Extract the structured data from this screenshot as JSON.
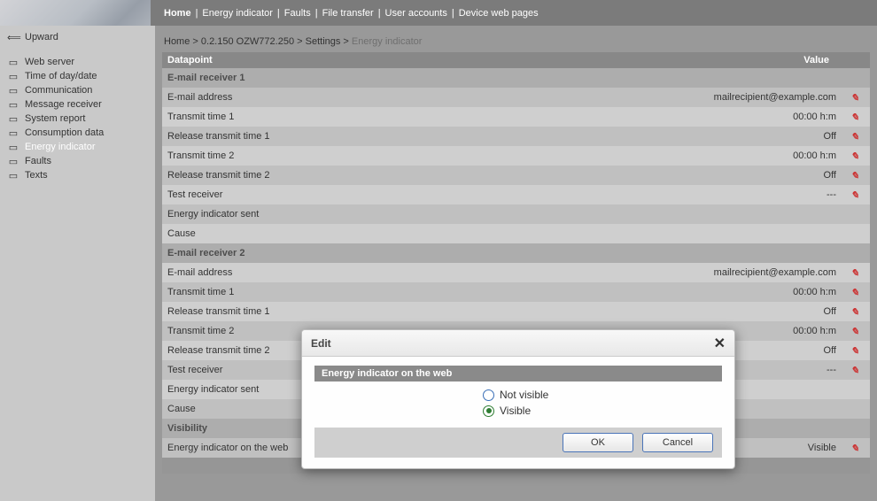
{
  "topnav": {
    "items": [
      "Home",
      "Energy indicator",
      "Faults",
      "File transfer",
      "User accounts",
      "Device web pages"
    ],
    "active_index": 0
  },
  "sidebar": {
    "upward": "Upward",
    "items": [
      "Web server",
      "Time of day/date",
      "Communication",
      "Message receiver",
      "System report",
      "Consumption data",
      "Energy indicator",
      "Faults",
      "Texts"
    ],
    "active_index": 6
  },
  "breadcrumb": {
    "parts": [
      "Home",
      "0.2.150 OZW772.250",
      "Settings"
    ],
    "last": "Energy indicator"
  },
  "table": {
    "head_datapoint": "Datapoint",
    "head_value": "Value",
    "sections": [
      {
        "title": "E-mail receiver 1",
        "rows": [
          {
            "dp": "E-mail address",
            "val": "mailrecipient@example.com",
            "edit": true
          },
          {
            "dp": "Transmit time 1",
            "val": "00:00  h:m",
            "edit": true
          },
          {
            "dp": "Release transmit time 1",
            "val": "Off",
            "edit": true
          },
          {
            "dp": "Transmit time 2",
            "val": "00:00  h:m",
            "edit": true
          },
          {
            "dp": "Release transmit time 2",
            "val": "Off",
            "edit": true
          },
          {
            "dp": "Test receiver",
            "val": "---",
            "edit": true
          },
          {
            "dp": "Energy indicator sent",
            "val": "",
            "edit": false
          },
          {
            "dp": "Cause",
            "val": "",
            "edit": false
          }
        ]
      },
      {
        "title": "E-mail receiver 2",
        "rows": [
          {
            "dp": "E-mail address",
            "val": "mailrecipient@example.com",
            "edit": true
          },
          {
            "dp": "Transmit time 1",
            "val": "00:00  h:m",
            "edit": true
          },
          {
            "dp": "Release transmit time 1",
            "val": "Off",
            "edit": true
          },
          {
            "dp": "Transmit time 2",
            "val": "00:00  h:m",
            "edit": true
          },
          {
            "dp": "Release transmit time 2",
            "val": "Off",
            "edit": true
          },
          {
            "dp": "Test receiver",
            "val": "---",
            "edit": true
          },
          {
            "dp": "Energy indicator sent",
            "val": "",
            "edit": false
          },
          {
            "dp": "Cause",
            "val": "",
            "edit": false
          }
        ]
      },
      {
        "title": "Visibility",
        "rows": [
          {
            "dp": "Energy indicator on the web",
            "val": "Visible",
            "edit": true
          }
        ]
      }
    ]
  },
  "dialog": {
    "title": "Edit",
    "field_label": "Energy indicator on the web",
    "option1": "Not visible",
    "option2": "Visible",
    "selected": 1,
    "ok": "OK",
    "cancel": "Cancel"
  }
}
